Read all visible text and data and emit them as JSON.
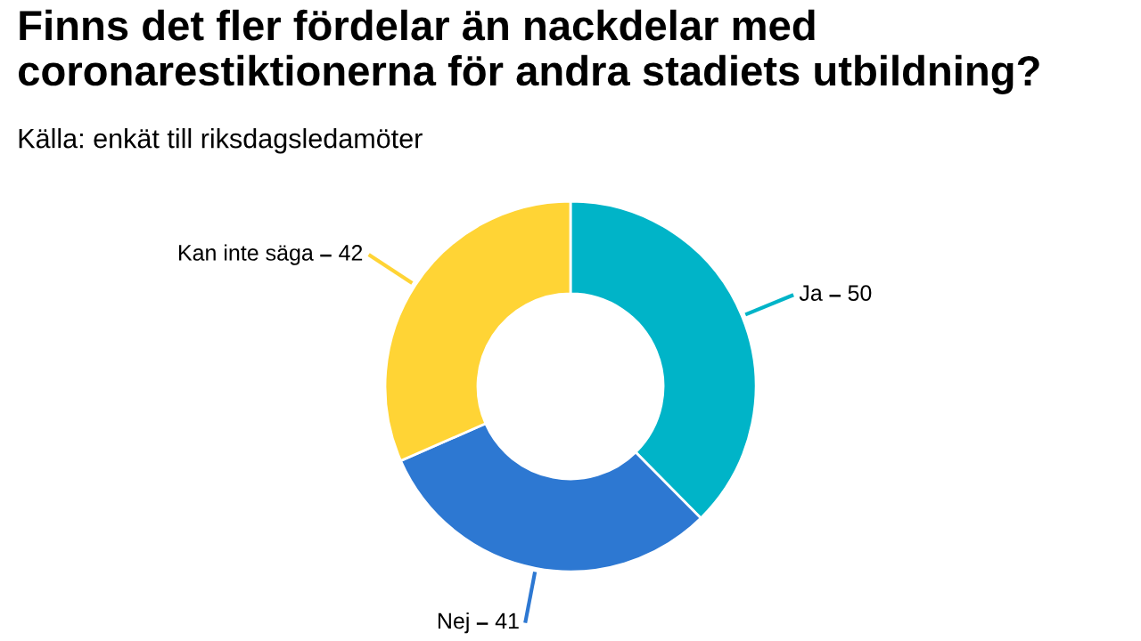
{
  "chart_data": {
    "type": "donut",
    "title": "Finns det fler fördelar än nackdelar med coronarestiktionerna för andra stadiets utbildning?",
    "subtitle": "Källa: enkät till riksdagsledamöter",
    "categories": [
      "Ja",
      "Nej",
      "Kan inte säga"
    ],
    "values": [
      50,
      41,
      42
    ],
    "data_labels": true,
    "colors": [
      "#00b4c8",
      "#2d78d2",
      "#ffd435"
    ]
  }
}
